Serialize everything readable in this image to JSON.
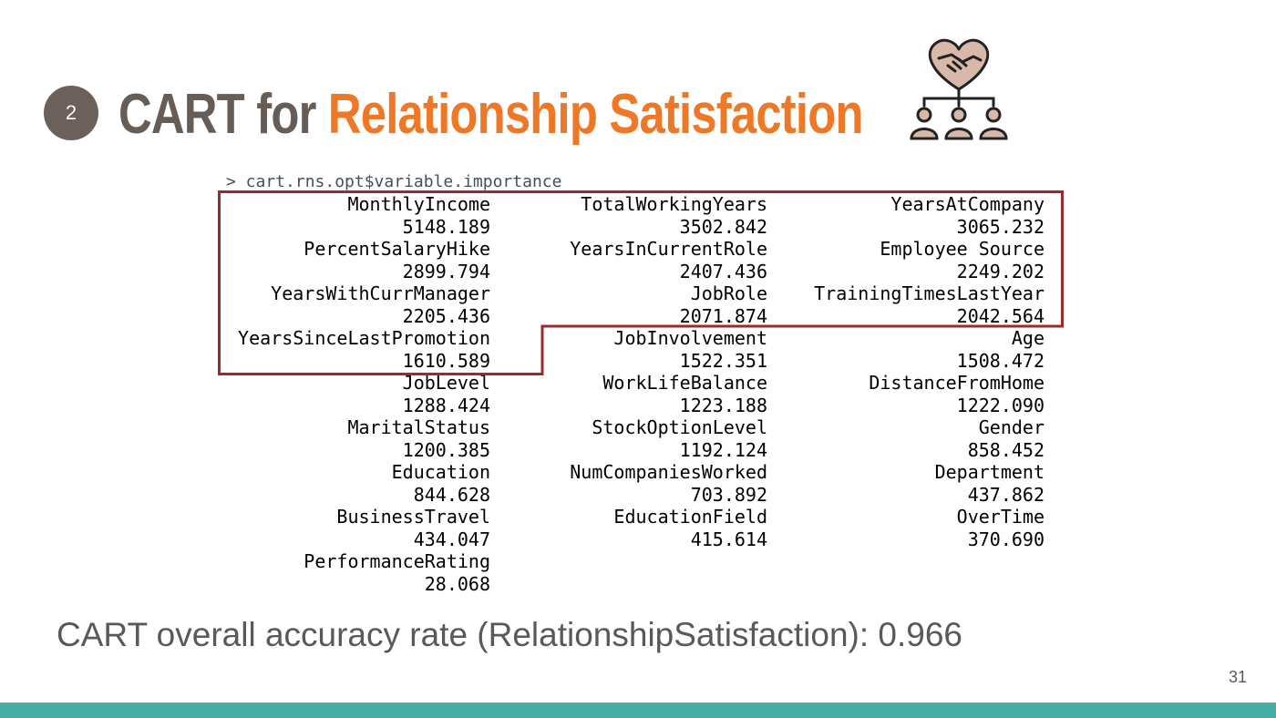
{
  "slide": {
    "badge_number": "2",
    "title_plain": "CART for ",
    "title_accent": "Relationship Satisfaction",
    "icon": "handshake-heart-org-chart-icon",
    "colors": {
      "badge": "#6b615a",
      "title_plain": "#665d56",
      "title_accent": "#ee7826",
      "highlight_box": "#9b2a2a",
      "bottom_bar": "#45ada3"
    }
  },
  "console": {
    "prompt": "> cart.rns.opt$variable.importance",
    "variables": [
      {
        "name": "MonthlyIncome",
        "value": "5148.189"
      },
      {
        "name": "TotalWorkingYears",
        "value": "3502.842"
      },
      {
        "name": "YearsAtCompany",
        "value": "3065.232"
      },
      {
        "name": "PercentSalaryHike",
        "value": "2899.794"
      },
      {
        "name": "YearsInCurrentRole",
        "value": "2407.436"
      },
      {
        "name": "Employee Source",
        "value": "2249.202"
      },
      {
        "name": "YearsWithCurrManager",
        "value": "2205.436"
      },
      {
        "name": "JobRole",
        "value": "2071.874"
      },
      {
        "name": "TrainingTimesLastYear",
        "value": "2042.564"
      },
      {
        "name": "YearsSinceLastPromotion",
        "value": "1610.589"
      },
      {
        "name": "JobInvolvement",
        "value": "1522.351"
      },
      {
        "name": "Age",
        "value": "1508.472"
      },
      {
        "name": "JobLevel",
        "value": "1288.424"
      },
      {
        "name": "WorkLifeBalance",
        "value": "1223.188"
      },
      {
        "name": "DistanceFromHome",
        "value": "1222.090"
      },
      {
        "name": "MaritalStatus",
        "value": "1200.385"
      },
      {
        "name": "StockOptionLevel",
        "value": "1192.124"
      },
      {
        "name": "Gender",
        "value": "858.452"
      },
      {
        "name": "Education",
        "value": "844.628"
      },
      {
        "name": "NumCompaniesWorked",
        "value": "703.892"
      },
      {
        "name": "Department",
        "value": "437.862"
      },
      {
        "name": "BusinessTravel",
        "value": "434.047"
      },
      {
        "name": "EducationField",
        "value": "415.614"
      },
      {
        "name": "OverTime",
        "value": "370.690"
      },
      {
        "name": "PerformanceRating",
        "value": "28.068"
      }
    ],
    "highlighted_count": 10
  },
  "footer": {
    "accuracy_text": "CART overall accuracy rate (RelationshipSatisfaction): 0.966"
  },
  "page_number": "31"
}
